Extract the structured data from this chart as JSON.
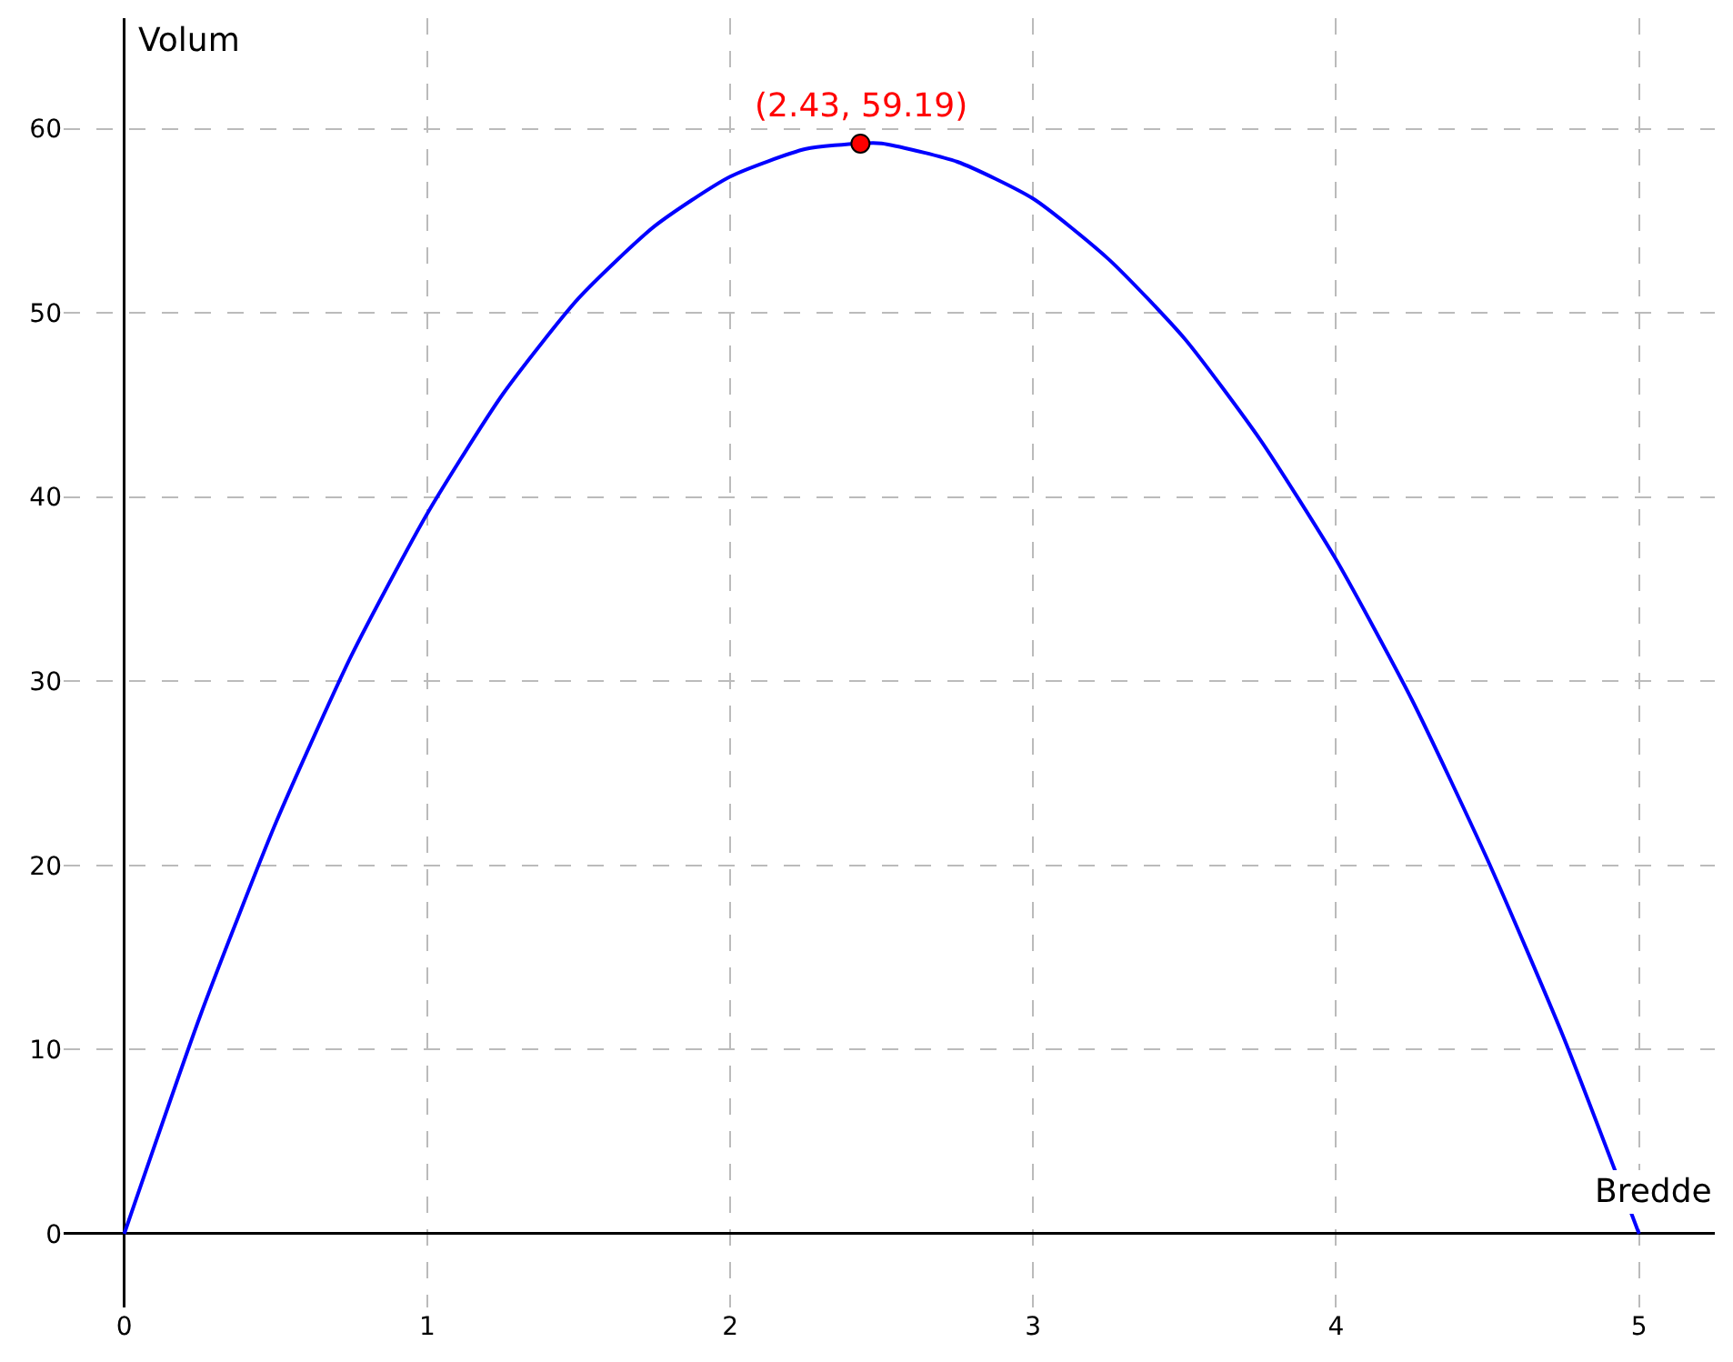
{
  "chart_data": {
    "type": "line",
    "xlabel": "Bredde",
    "ylabel": "Volum",
    "x": [
      0,
      0.25,
      0.5,
      0.75,
      1,
      1.25,
      1.5,
      1.75,
      2,
      2.25,
      2.43,
      2.5,
      2.75,
      3,
      3.25,
      3.5,
      3.75,
      4,
      4.25,
      4.5,
      4.75,
      5
    ],
    "series": [
      {
        "color": "#0000ff",
        "values": [
          0,
          11.8,
          22.3,
          31.4,
          39.1,
          45.6,
          50.8,
          54.7,
          57.4,
          58.9,
          59.2,
          59.2,
          58.2,
          56.2,
          52.9,
          48.6,
          43.1,
          36.6,
          29.0,
          20.3,
          10.7,
          0
        ]
      },
      {
        "type": "scatter",
        "color": "#ff0000",
        "x": [
          2.43
        ],
        "values": [
          59.19
        ],
        "marker": "circle"
      }
    ],
    "annotations": [
      {
        "text": "(2.43, 59.19)",
        "x": 2.43,
        "y": 59.19
      }
    ],
    "xlim": [
      -0.2,
      5.25
    ],
    "ylim": [
      -4,
      66
    ],
    "xticks": [
      0,
      1,
      2,
      3,
      4,
      5
    ],
    "yticks": [
      0,
      10,
      20,
      30,
      40,
      50,
      60
    ],
    "grid": true,
    "line_style": "solid",
    "marker": "none"
  }
}
